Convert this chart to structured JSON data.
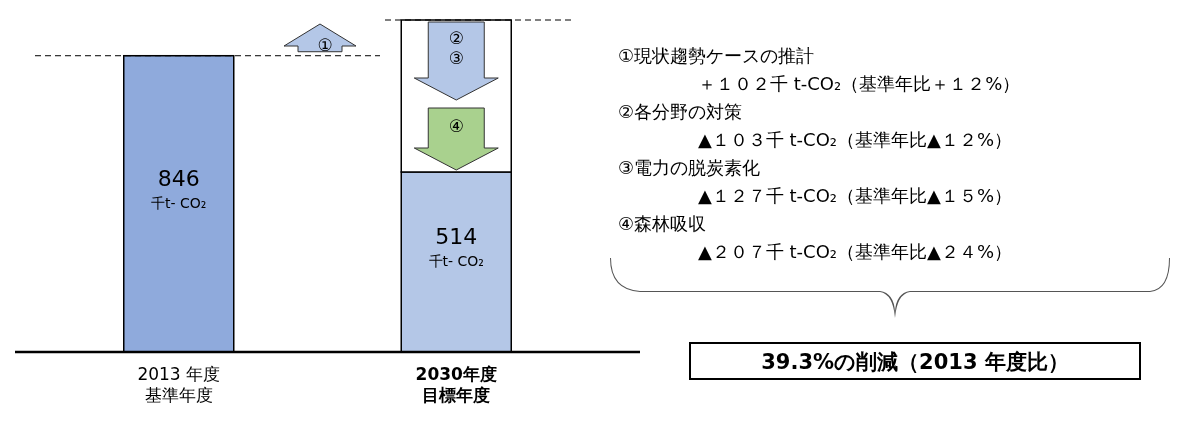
{
  "chart_data": {
    "type": "bar",
    "stacked": true,
    "categories": [
      "2013 年度基準年度",
      "2030年度目標年度"
    ],
    "series": [
      {
        "values": [
          846,
          514
        ],
        "colors": [
          "#8faadc",
          "#b4c7e7"
        ],
        "value_labels": [
          "846\n千t- CO₂",
          "514\n千t- CO₂"
        ]
      },
      {
        "color": "#ffffff",
        "values": [
          null,
          434
        ]
      }
    ],
    "ref_lines": [
      {
        "axis": "y",
        "value": 846,
        "line_style": "dashed",
        "color": "#000000"
      },
      {
        "axis": "y",
        "value": 948,
        "line_style": "dashed",
        "color": "#000000"
      }
    ],
    "annotations": [
      "①",
      "②\n③",
      "④",
      "①現状趨勢ケースの推計",
      "＋１０２千 t-CO₂（基準年比＋１２%）",
      "②各分野の対策",
      "▲１０３千 t-CO₂（基準年比▲１２%）",
      "③電力の脱炭素化",
      "▲１２７千 t-CO₂（基準年比▲１５%）",
      "④森林吸収",
      "▲２０７千 t-CO₂（基準年比▲２４%）",
      "39.3%の削減（2013 年度比）"
    ]
  }
}
